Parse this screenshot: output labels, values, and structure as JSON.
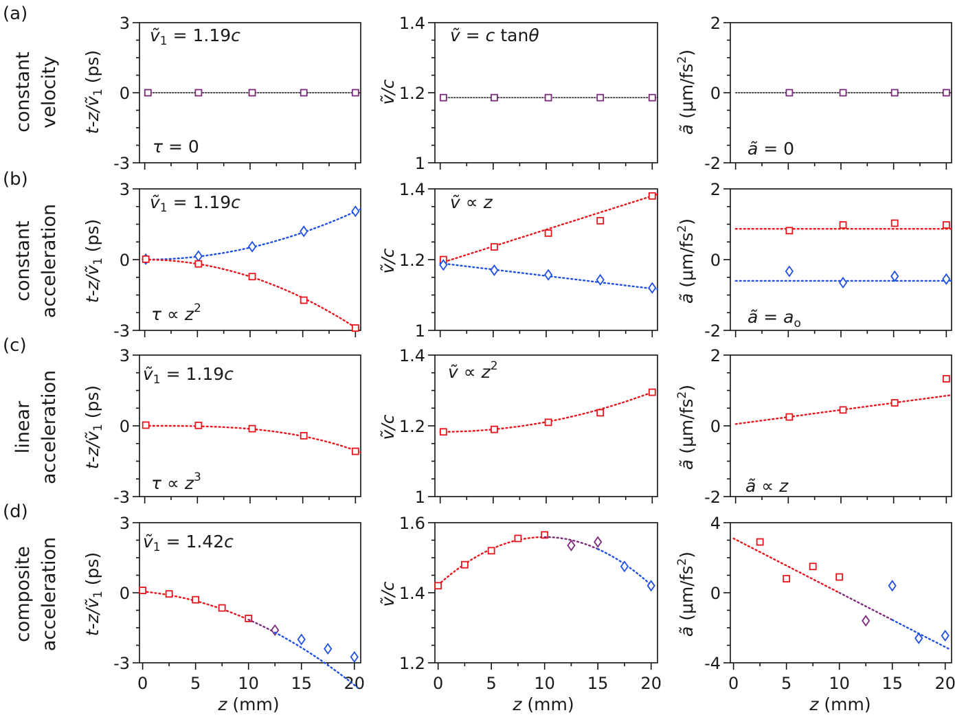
{
  "rows": [
    {
      "letter": "(a)",
      "label1": "constant",
      "label2": "velocity"
    },
    {
      "letter": "(b)",
      "label1": "constant",
      "label2": "acceleration"
    },
    {
      "letter": "(c)",
      "label1": "linear",
      "label2": "acceleration"
    },
    {
      "letter": "(d)",
      "label1": "composite",
      "label2": "acceleration"
    }
  ],
  "axis_labels": {
    "col1": {
      "main": "t-z/",
      "v": "ṽ",
      "sub": "1",
      "unit": " (ps)"
    },
    "col2": {
      "v": "ṽ",
      "rest": "/c"
    },
    "col3": {
      "a": "ã",
      "unit": " (μm/fs",
      "sup": "2",
      "close": ")"
    },
    "x": {
      "var": "z",
      "unit": " (mm)"
    }
  },
  "colors": {
    "red": "#e8141b",
    "blue": "#1f4fe0",
    "purple": "#7a2a7a",
    "ink": "#111111"
  },
  "chart_data": [
    {
      "id": "a1",
      "type": "scatter",
      "xlim": [
        -0.5,
        20.5
      ],
      "ylim": [
        -3,
        3
      ],
      "yticks": [
        -3,
        0,
        3
      ],
      "xticks": [
        0,
        5,
        10,
        15,
        20
      ],
      "annotations": {
        "top_v": "ṽ",
        "top_sub": "1",
        "top_rest": " = 1.19",
        "top_c": "c",
        "bottom_a": "τ",
        "bottom_b": " = 0"
      },
      "series": [
        {
          "name": "delay",
          "color": "purple",
          "marker": "square",
          "x": [
            0.3,
            5.1,
            10.2,
            15.1,
            20.0
          ],
          "y": [
            0,
            0,
            0,
            0,
            0
          ],
          "fit": {
            "kind": "const",
            "y": 0,
            "from": 0,
            "to": 20.5,
            "color": "ink"
          }
        }
      ]
    },
    {
      "id": "a2",
      "type": "scatter",
      "xlim": [
        -0.5,
        20.5
      ],
      "ylim": [
        1,
        1.4
      ],
      "yticks": [
        1,
        1.2,
        1.4
      ],
      "xticks": [
        0,
        5,
        10,
        15,
        20
      ],
      "annotations": {
        "top_v": "ṽ",
        "top_rest": " = ",
        "top_c": "c",
        "top_tan": " tan",
        "top_theta": "θ"
      },
      "series": [
        {
          "name": "velocity",
          "color": "purple",
          "marker": "square",
          "x": [
            0.3,
            5.1,
            10.2,
            15.1,
            20.0
          ],
          "y": [
            1.186,
            1.186,
            1.186,
            1.186,
            1.186
          ],
          "fit": {
            "kind": "const",
            "y": 1.186,
            "from": 0,
            "to": 20.5,
            "color": "ink"
          }
        }
      ]
    },
    {
      "id": "a3",
      "type": "scatter",
      "xlim": [
        -0.5,
        20.5
      ],
      "ylim": [
        -2,
        2
      ],
      "yticks": [
        -2,
        0,
        2
      ],
      "xticks": [
        0,
        5,
        10,
        15,
        20
      ],
      "annotations": {
        "bottom_a": "ã",
        "bottom_b": " = 0"
      },
      "series": [
        {
          "name": "acceleration",
          "color": "purple",
          "marker": "square",
          "x": [
            5.1,
            10.2,
            15.1,
            20.0
          ],
          "y": [
            0,
            0,
            0,
            0
          ],
          "fit": {
            "kind": "const",
            "y": 0,
            "from": 0,
            "to": 20.5,
            "color": "ink"
          }
        }
      ]
    },
    {
      "id": "b1",
      "type": "scatter",
      "xlim": [
        -0.5,
        20.5
      ],
      "ylim": [
        -3,
        3
      ],
      "yticks": [
        -3,
        0,
        3
      ],
      "xticks": [
        0,
        5,
        10,
        15,
        20
      ],
      "annotations": {
        "top_v": "ṽ",
        "top_sub": "1",
        "top_rest": " = 1.19",
        "top_c": "c",
        "bottom_a": "τ",
        "bottom_b": " ∝ ",
        "bottom_z": "z",
        "bottom_sup": "2"
      },
      "series": [
        {
          "name": "decelerating",
          "color": "blue",
          "marker": "diamond",
          "x": [
            0.1,
            5.1,
            10.2,
            15.1,
            20.0
          ],
          "y": [
            0.02,
            0.15,
            0.55,
            1.2,
            2.05
          ],
          "fit": {
            "kind": "quad",
            "c": [
              0,
              0,
              0.0051
            ],
            "from": 0,
            "to": 20.5
          }
        },
        {
          "name": "accelerating",
          "color": "red",
          "marker": "square",
          "x": [
            0.1,
            5.1,
            10.2,
            15.1,
            20.0
          ],
          "y": [
            0.02,
            -0.18,
            -0.72,
            -1.72,
            -2.9
          ],
          "fit": {
            "kind": "quad",
            "c": [
              0,
              0,
              -0.0072
            ],
            "from": 0,
            "to": 20.5
          }
        }
      ]
    },
    {
      "id": "b2",
      "type": "scatter",
      "xlim": [
        -0.5,
        20.5
      ],
      "ylim": [
        1,
        1.4
      ],
      "yticks": [
        1,
        1.2,
        1.4
      ],
      "xticks": [
        0,
        5,
        10,
        15,
        20
      ],
      "annotations": {
        "top_v": "ṽ",
        "top_rest": " ∝ ",
        "top_z": "z"
      },
      "series": [
        {
          "name": "accelerating",
          "color": "red",
          "marker": "square",
          "x": [
            0.3,
            5.1,
            10.2,
            15.1,
            20.0
          ],
          "y": [
            1.2,
            1.236,
            1.275,
            1.31,
            1.38
          ],
          "fit": {
            "kind": "quad",
            "c": [
              1.19,
              0.0095,
              0
            ],
            "from": 0,
            "to": 20.5
          }
        },
        {
          "name": "decelerating",
          "color": "blue",
          "marker": "diamond",
          "x": [
            0.3,
            5.1,
            10.2,
            15.1,
            20.0
          ],
          "y": [
            1.185,
            1.17,
            1.157,
            1.143,
            1.12
          ],
          "fit": {
            "kind": "quad",
            "c": [
              1.19,
              -0.0036,
              0
            ],
            "from": 0,
            "to": 20.5
          }
        }
      ]
    },
    {
      "id": "b3",
      "type": "scatter",
      "xlim": [
        -0.5,
        20.5
      ],
      "ylim": [
        -2,
        2
      ],
      "yticks": [
        -2,
        0,
        2
      ],
      "xticks": [
        0,
        5,
        10,
        15,
        20
      ],
      "annotations": {
        "bottom_a": "ã",
        "bottom_b": " = ",
        "bottom_ao": "a",
        "bottom_o": "o"
      },
      "series": [
        {
          "name": "accelerating",
          "color": "red",
          "marker": "square",
          "x": [
            5.1,
            10.2,
            15.1,
            20.0
          ],
          "y": [
            0.82,
            0.98,
            1.03,
            0.98
          ],
          "fit": {
            "kind": "const",
            "y": 0.87,
            "from": 0,
            "to": 20.5
          }
        },
        {
          "name": "decelerating",
          "color": "blue",
          "marker": "diamond",
          "x": [
            5.1,
            10.2,
            15.1,
            20.0
          ],
          "y": [
            -0.33,
            -0.65,
            -0.47,
            -0.55
          ],
          "fit": {
            "kind": "const",
            "y": -0.6,
            "from": 0,
            "to": 20.5
          }
        }
      ]
    },
    {
      "id": "c1",
      "type": "scatter",
      "xlim": [
        -0.5,
        20.5
      ],
      "ylim": [
        -3,
        3
      ],
      "yticks": [
        -3,
        0,
        3
      ],
      "xticks": [
        0,
        5,
        10,
        15,
        20
      ],
      "annotations": {
        "top_v": "ṽ",
        "top_sub": "1",
        "top_rest": " = 1.19",
        "top_c": "c",
        "bottom_a": "τ",
        "bottom_b": " ∝ ",
        "bottom_z": "z",
        "bottom_sup": "3"
      },
      "series": [
        {
          "name": "linear",
          "color": "red",
          "marker": "square",
          "x": [
            0.1,
            5.1,
            10.2,
            15.1,
            20.0
          ],
          "y": [
            0.03,
            0.02,
            -0.12,
            -0.42,
            -1.08
          ],
          "fit": {
            "kind": "cubic",
            "c": [
              0,
              0,
              0,
              -0.00013
            ],
            "from": 0,
            "to": 20.5
          }
        }
      ]
    },
    {
      "id": "c2",
      "type": "scatter",
      "xlim": [
        -0.5,
        20.5
      ],
      "ylim": [
        1,
        1.4
      ],
      "yticks": [
        1,
        1.2,
        1.4
      ],
      "xticks": [
        0,
        5,
        10,
        15,
        20
      ],
      "annotations": {
        "top_v": "ṽ",
        "top_rest": " ∝ ",
        "top_z": "z",
        "top_sup": "2"
      },
      "series": [
        {
          "name": "linear",
          "color": "red",
          "marker": "square",
          "x": [
            0.3,
            5.1,
            10.2,
            15.1,
            20.0
          ],
          "y": [
            1.183,
            1.19,
            1.21,
            1.237,
            1.295
          ],
          "fit": {
            "kind": "quad",
            "c": [
              1.183,
              0,
              0.00028
            ],
            "from": 0,
            "to": 20.5
          }
        }
      ]
    },
    {
      "id": "c3",
      "type": "scatter",
      "xlim": [
        -0.5,
        20.5
      ],
      "ylim": [
        -2,
        2
      ],
      "yticks": [
        -2,
        0,
        2
      ],
      "xticks": [
        0,
        5,
        10,
        15,
        20
      ],
      "annotations": {
        "bottom_a": "ã",
        "bottom_b": " ∝ ",
        "bottom_z": "z"
      },
      "series": [
        {
          "name": "linear",
          "color": "red",
          "marker": "square",
          "x": [
            5.1,
            10.2,
            15.1,
            20.0
          ],
          "y": [
            0.25,
            0.45,
            0.65,
            1.33
          ],
          "fit": {
            "kind": "quad",
            "c": [
              0.05,
              0.04,
              0
            ],
            "from": 0,
            "to": 20.5
          }
        }
      ]
    },
    {
      "id": "d1",
      "type": "scatter",
      "xlim": [
        -0.3,
        20.6
      ],
      "ylim": [
        -3,
        3
      ],
      "yticks": [
        -3,
        0,
        3
      ],
      "xticks": [
        0,
        5,
        10,
        15,
        20
      ],
      "annotations": {
        "top_v": "ṽ",
        "top_sub": "1",
        "top_rest": " = 1.42",
        "top_c": "c"
      },
      "series": [
        {
          "name": "accelerating",
          "color": "red",
          "marker": "square",
          "x": [
            0,
            2.5,
            5,
            7.5,
            10
          ],
          "y": [
            0.1,
            -0.05,
            -0.3,
            -0.65,
            -1.1
          ],
          "fit": {
            "kind": "quad",
            "c": [
              0.05,
              -0.04,
              -0.008
            ],
            "from": 0,
            "to": 10
          }
        },
        {
          "name": "transition",
          "color": "purple",
          "marker": "diamond",
          "x": [
            12.5
          ],
          "y": [
            -1.6
          ],
          "fit": {
            "kind": "quad",
            "c": [
              0.05,
              -0.04,
              -0.008
            ],
            "from": 10,
            "to": 12.5
          }
        },
        {
          "name": "decelerating",
          "color": "blue",
          "marker": "diamond",
          "x": [
            15,
            17.5,
            20
          ],
          "y": [
            -2.0,
            -2.4,
            -2.75
          ],
          "fit": {
            "kind": "quad",
            "c": [
              0.05,
              -0.04,
              -0.008
            ],
            "from": 12.5,
            "to": 20.3
          }
        }
      ]
    },
    {
      "id": "d2",
      "type": "scatter",
      "xlim": [
        -0.3,
        20.6
      ],
      "ylim": [
        1.2,
        1.6
      ],
      "yticks": [
        1.2,
        1.4,
        1.6
      ],
      "xticks": [
        0,
        5,
        10,
        15,
        20
      ],
      "annotations": {},
      "series": [
        {
          "name": "accelerating",
          "color": "red",
          "marker": "square",
          "x": [
            0,
            2.5,
            5,
            7.5,
            10
          ],
          "y": [
            1.42,
            1.48,
            1.52,
            1.555,
            1.565
          ],
          "fit": {
            "kind": "quad",
            "c": [
              1.422,
              0.0274,
              -0.00137
            ],
            "from": 0,
            "to": 10
          }
        },
        {
          "name": "transition",
          "color": "purple",
          "marker": "diamond",
          "x": [
            12.5,
            15
          ],
          "y": [
            1.535,
            1.545
          ],
          "fit": {
            "kind": "quad",
            "c": [
              1.422,
              0.0274,
              -0.00137
            ],
            "from": 10,
            "to": 15
          }
        },
        {
          "name": "decelerating",
          "color": "blue",
          "marker": "diamond",
          "x": [
            17.5,
            20
          ],
          "y": [
            1.475,
            1.42
          ],
          "fit": {
            "kind": "quad",
            "c": [
              1.422,
              0.0274,
              -0.00137
            ],
            "from": 15,
            "to": 20.3
          }
        }
      ]
    },
    {
      "id": "d3",
      "type": "scatter",
      "xlim": [
        -0.3,
        20.6
      ],
      "ylim": [
        -4,
        4
      ],
      "yticks": [
        -4,
        0,
        4
      ],
      "xticks": [
        0,
        5,
        10,
        15,
        20
      ],
      "annotations": {},
      "series": [
        {
          "name": "accelerating",
          "color": "red",
          "marker": "square",
          "x": [
            2.5,
            5,
            7.5,
            10
          ],
          "y": [
            2.9,
            0.8,
            1.5,
            0.9
          ],
          "fit": {
            "kind": "quad",
            "c": [
              3.1,
              -0.31,
              0
            ],
            "from": 0,
            "to": 10
          }
        },
        {
          "name": "transition",
          "color": "purple",
          "marker": "diamond",
          "x": [
            12.5
          ],
          "y": [
            -1.6
          ],
          "fit": {
            "kind": "quad",
            "c": [
              3.1,
              -0.31,
              0
            ],
            "from": 10,
            "to": 15
          }
        },
        {
          "name": "decelerating",
          "color": "blue",
          "marker": "diamond",
          "x": [
            15,
            17.5,
            20
          ],
          "y": [
            0.4,
            -2.6,
            -2.45
          ],
          "fit": {
            "kind": "quad",
            "c": [
              3.1,
              -0.31,
              0
            ],
            "from": 15,
            "to": 20.3
          }
        }
      ]
    }
  ]
}
